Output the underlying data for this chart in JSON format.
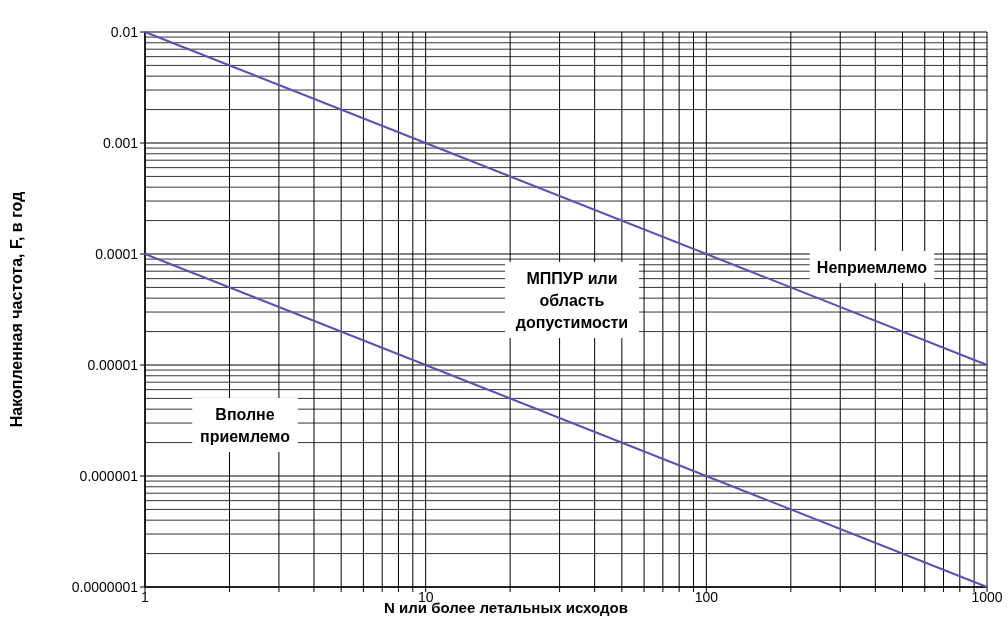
{
  "chart_data": {
    "type": "line",
    "xlabel": "N или более летальных исходов",
    "ylabel": "Накопленная частота, F, в год",
    "log": "xy",
    "grid": true,
    "line_style": "solid",
    "xlim": [
      1,
      1000
    ],
    "ylim": [
      1e-07,
      0.01
    ],
    "xticks": [
      1,
      {
        "value": 2,
        "label": null
      },
      {
        "value": 3,
        "label": null
      },
      {
        "value": 4,
        "label": null
      },
      {
        "value": 5,
        "label": null
      },
      {
        "value": 6,
        "label": null
      },
      {
        "value": 7,
        "label": null
      },
      {
        "value": 8,
        "label": null
      },
      {
        "value": 9,
        "label": null
      },
      10,
      {
        "value": 20,
        "label": null
      },
      {
        "value": 30,
        "label": null
      },
      {
        "value": 40,
        "label": null
      },
      {
        "value": 50,
        "label": null
      },
      {
        "value": 60,
        "label": null
      },
      {
        "value": 70,
        "label": null
      },
      {
        "value": 80,
        "label": null
      },
      {
        "value": 90,
        "label": null
      },
      100,
      {
        "value": 200,
        "label": null
      },
      {
        "value": 300,
        "label": null
      },
      {
        "value": 400,
        "label": null
      },
      {
        "value": 500,
        "label": null
      },
      {
        "value": 600,
        "label": null
      },
      {
        "value": 700,
        "label": null
      },
      {
        "value": 800,
        "label": null
      },
      {
        "value": 900,
        "label": null
      },
      1000
    ],
    "yticks": [
      {
        "value": 1e-07,
        "label": "0.0000001"
      },
      {
        "value": 1e-06,
        "label": "0.000001"
      },
      {
        "value": 1e-05,
        "label": "0.00001"
      },
      {
        "value": 0.0001,
        "label": "0.0001"
      },
      {
        "value": 0.001,
        "label": "0.001"
      },
      {
        "value": 0.01,
        "label": "0.01"
      }
    ],
    "x": [
      1,
      1000
    ],
    "series": [
      {
        "color": "#5a4fb5",
        "values": [
          0.01,
          1e-05
        ]
      },
      {
        "color": "#5a4fb5",
        "values": [
          0.0001,
          1e-07
        ]
      }
    ],
    "annotations": [
      "Неприемлемо",
      "МППУР или\nобласть\nдопустимости",
      "Вполне\nприемлемо"
    ]
  }
}
